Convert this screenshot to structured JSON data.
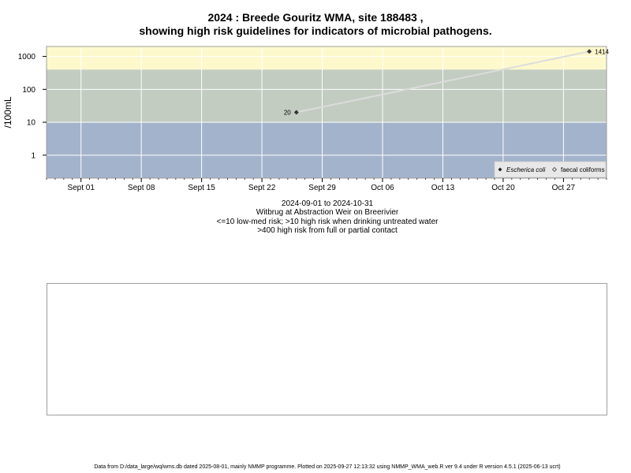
{
  "title": {
    "line1": "2024 : Breede Gouritz WMA, site 188483 ,",
    "line2": "showing high risk guidelines for indicators of microbial pathogens."
  },
  "subtitle": {
    "lines": [
      "2024-09-01 to 2024-10-31",
      "Witbrug at Abstraction Weir on Breerivier",
      "<=10 low-med risk; >10 high risk when drinking untreated water",
      ">400 high risk from full or partial contact"
    ]
  },
  "footer": "Data from D:/data_large/wq/wms.db dated 2025-08-01, mainly NMMP programme. Plotted on 2025-09-27 12:13:32 using NMMP_WMA_web.R ver 9.4 under R version 4.5.1 (2025-06-13 ucrt)",
  "colors": {
    "band_low": "#a3b3cc",
    "band_high": "#c2ccc1",
    "band_contact": "#fdf9cc",
    "grid": "#ffffff",
    "line": "#dcdcdc",
    "point": "#333333"
  },
  "chart_data": {
    "type": "line",
    "title": "",
    "ylabel": "/100mL",
    "xlabel": "",
    "y_scale": "log",
    "xlim": [
      "2024-08-28",
      "2024-11-01"
    ],
    "ylim": [
      0.2,
      2000
    ],
    "x_ticks": [
      {
        "date": "2024-09-01",
        "label": "Sept 01"
      },
      {
        "date": "2024-09-08",
        "label": "Sept 08"
      },
      {
        "date": "2024-09-15",
        "label": "Sept 15"
      },
      {
        "date": "2024-09-22",
        "label": "Sept 22"
      },
      {
        "date": "2024-09-29",
        "label": "Sept 29"
      },
      {
        "date": "2024-10-06",
        "label": "Oct 06"
      },
      {
        "date": "2024-10-13",
        "label": "Oct 13"
      },
      {
        "date": "2024-10-20",
        "label": "Oct 20"
      },
      {
        "date": "2024-10-27",
        "label": "Oct 27"
      }
    ],
    "y_ticks": [
      {
        "value": 1,
        "label": "1"
      },
      {
        "value": 10,
        "label": "10"
      },
      {
        "value": 100,
        "label": "100"
      },
      {
        "value": 1000,
        "label": "1000"
      }
    ],
    "bands": [
      {
        "from": 0.2,
        "to": 10,
        "color": "#a3b3cc"
      },
      {
        "from": 10,
        "to": 400,
        "color": "#c2ccc1"
      },
      {
        "from": 400,
        "to": 2000,
        "color": "#fdf9cc"
      }
    ],
    "grid": true,
    "legend_position": "bottom-right",
    "legend": [
      {
        "label": "Escherica coli",
        "marker": "filled-diamond"
      },
      {
        "label": "faecal coliforms",
        "marker": "open-diamond"
      }
    ],
    "series": [
      {
        "name": "Escherica coli",
        "points": [
          {
            "x": "2024-09-26",
            "y": 20,
            "label": "20"
          },
          {
            "x": "2024-10-30",
            "y": 1414,
            "label": "1414"
          }
        ]
      }
    ]
  }
}
